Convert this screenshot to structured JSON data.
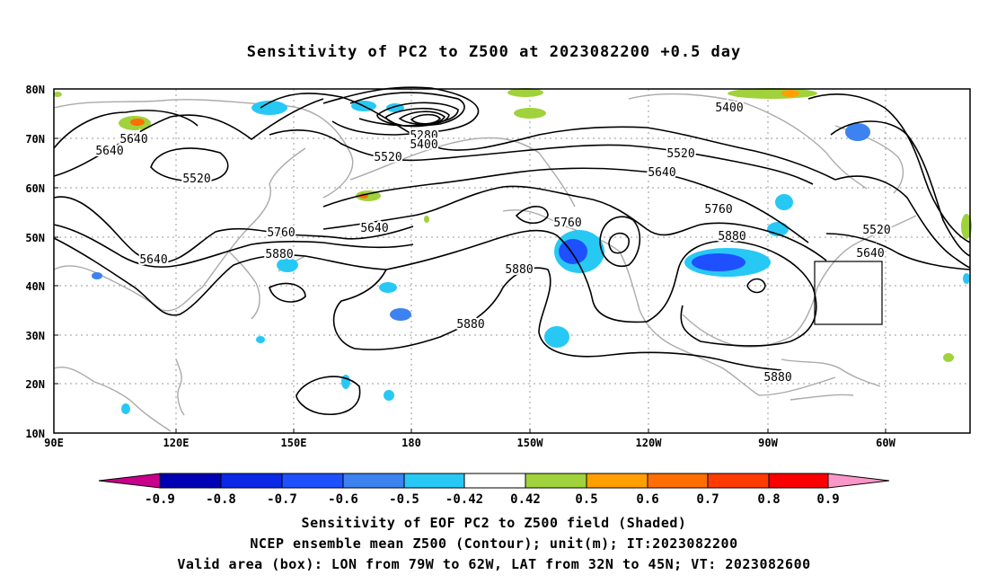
{
  "title": "Sensitivity of PC2 to Z500 at 2023082200 +0.5 day",
  "lat_labels": [
    "80N",
    "70N",
    "60N",
    "50N",
    "40N",
    "30N",
    "20N",
    "10N"
  ],
  "lon_labels": [
    "90E",
    "120E",
    "150E",
    "180",
    "150W",
    "120W",
    "90W",
    "60W"
  ],
  "contour_labels": [
    {
      "text": "5640"
    },
    {
      "text": "5640"
    },
    {
      "text": "5520"
    },
    {
      "text": "5640"
    },
    {
      "text": "5760"
    },
    {
      "text": "5880"
    },
    {
      "text": "5640"
    },
    {
      "text": "5280"
    },
    {
      "text": "5400"
    },
    {
      "text": "5520"
    },
    {
      "text": "5760"
    },
    {
      "text": "5880"
    },
    {
      "text": "5880"
    },
    {
      "text": "5400"
    },
    {
      "text": "5520"
    },
    {
      "text": "5640"
    },
    {
      "text": "5760"
    },
    {
      "text": "5880"
    },
    {
      "text": "5880"
    },
    {
      "text": "5520"
    },
    {
      "text": "5640"
    }
  ],
  "colorbar": {
    "labels": [
      "-0.9",
      "-0.8",
      "-0.7",
      "-0.6",
      "-0.5",
      "-0.42",
      "0.42",
      "0.5",
      "0.6",
      "0.7",
      "0.8",
      "0.9"
    ],
    "colors": [
      "#c8008c",
      "#0000b4",
      "#0a28e6",
      "#1e50ff",
      "#3c82f0",
      "#28c8f5",
      "#ffffff",
      "#a0d23c",
      "#ffa000",
      "#ff6e00",
      "#ff3c00",
      "#fa0000",
      "#fa96c8"
    ]
  },
  "validation_box": {
    "lon_min": -79,
    "lon_max": -62,
    "lat_min": 32,
    "lat_max": 45
  },
  "footer": {
    "line1": "Sensitivity of EOF PC2 to Z500 field (Shaded)",
    "line2": "NCEP ensemble mean Z500 (Contour); unit(m); IT:2023082200",
    "line3": "Valid area (box): LON from 79W to 62W, LAT from 32N to 45N; VT: 2023082600"
  }
}
